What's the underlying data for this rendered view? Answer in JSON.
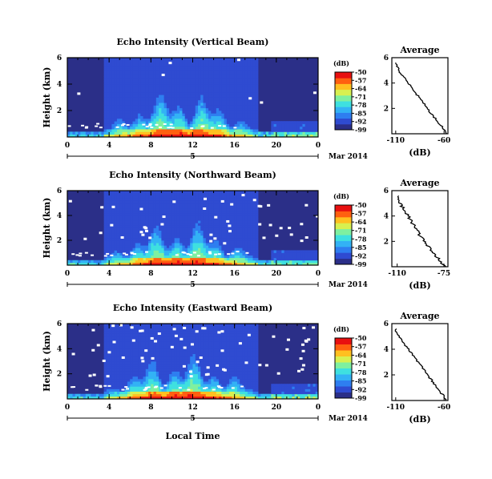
{
  "page": {
    "xlabel": "Local Time",
    "date_label": "5",
    "month_label": "Mar 2014"
  },
  "chart_data": [
    {
      "type": "heatmap",
      "title": "Echo Intensity (Vertical Beam)",
      "ylabel": "Height (km)",
      "xlabel": "",
      "x_ticks": [
        "0",
        "4",
        "8",
        "12",
        "16",
        "20",
        "0"
      ],
      "y_ticks": [
        "6",
        "4",
        "2"
      ],
      "xlim": [
        0,
        24
      ],
      "ylim": [
        0,
        6
      ],
      "colorbar": {
        "label": "(dB)",
        "ticks": [
          "-50",
          "-57",
          "-64",
          "-71",
          "-78",
          "-85",
          "-92",
          "-99"
        ],
        "range": [
          -99,
          -50
        ]
      },
      "day_label": "5",
      "date_label": "Mar 2014",
      "profile": {
        "title": "Average",
        "xlabel": "(dB)",
        "x_ticks": [
          "-110",
          "-60"
        ],
        "y_ticks": [
          "6",
          "4",
          "2"
        ],
        "xlim": [
          -114,
          -56
        ],
        "height_km": [
          0,
          0.5,
          1,
          1.5,
          2,
          2.5,
          3,
          3.5,
          4,
          4.5,
          5,
          5.5
        ],
        "db": [
          -58,
          -62,
          -67,
          -72,
          -77,
          -82,
          -87,
          -92,
          -97,
          -102,
          -107,
          -110
        ]
      }
    },
    {
      "type": "heatmap",
      "title": "Echo Intensity (Northward Beam)",
      "ylabel": "Height (km)",
      "xlabel": "",
      "x_ticks": [
        "0",
        "4",
        "8",
        "12",
        "16",
        "20",
        "0"
      ],
      "y_ticks": [
        "6",
        "4",
        "2"
      ],
      "xlim": [
        0,
        24
      ],
      "ylim": [
        0,
        6
      ],
      "colorbar": {
        "label": "(dB)",
        "ticks": [
          "-50",
          "-57",
          "-64",
          "-71",
          "-78",
          "-85",
          "-92",
          "-99"
        ],
        "range": [
          -99,
          -50
        ]
      },
      "day_label": "5",
      "date_label": "Mar 2014",
      "profile": {
        "title": "Average",
        "xlabel": "(dB)",
        "x_ticks": [
          "-110",
          "-75"
        ],
        "y_ticks": [
          "6",
          "4",
          "2"
        ],
        "xlim": [
          -114,
          -72
        ],
        "height_km": [
          0,
          0.5,
          1,
          1.5,
          2,
          2.5,
          3,
          3.5,
          4,
          4.5,
          5,
          5.5
        ],
        "db": [
          -74,
          -78,
          -82,
          -86,
          -90,
          -93,
          -96,
          -99,
          -102,
          -105,
          -108,
          -110
        ]
      }
    },
    {
      "type": "heatmap",
      "title": "Echo Intensity (Eastward Beam)",
      "ylabel": "Height (km)",
      "xlabel": "Local Time",
      "x_ticks": [
        "0",
        "4",
        "8",
        "12",
        "16",
        "20",
        "0"
      ],
      "y_ticks": [
        "6",
        "4",
        "2"
      ],
      "xlim": [
        0,
        24
      ],
      "ylim": [
        0,
        6
      ],
      "colorbar": {
        "label": "(dB)",
        "ticks": [
          "-50",
          "-57",
          "-64",
          "-71",
          "-78",
          "-85",
          "-92",
          "-99"
        ],
        "range": [
          -99,
          -50
        ]
      },
      "day_label": "5",
      "date_label": "Mar 2014",
      "profile": {
        "title": "Average",
        "xlabel": "(dB)",
        "x_ticks": [
          "-110",
          "-60"
        ],
        "y_ticks": [
          "6",
          "4",
          "2"
        ],
        "xlim": [
          -114,
          -56
        ],
        "height_km": [
          0,
          0.5,
          1,
          1.5,
          2,
          2.5,
          3,
          3.5,
          4,
          4.5,
          5,
          5.5
        ],
        "db": [
          -58,
          -62,
          -67,
          -72,
          -77,
          -82,
          -87,
          -92,
          -97,
          -102,
          -107,
          -110
        ]
      }
    }
  ],
  "colors": {
    "background_low": "#2b2f88",
    "colormap": [
      "#2b2f88",
      "#2f4bd1",
      "#2e7ef0",
      "#33b2f5",
      "#3fe0e0",
      "#7ff0a0",
      "#d8f050",
      "#ffc020",
      "#ff6010",
      "#e81010"
    ]
  }
}
